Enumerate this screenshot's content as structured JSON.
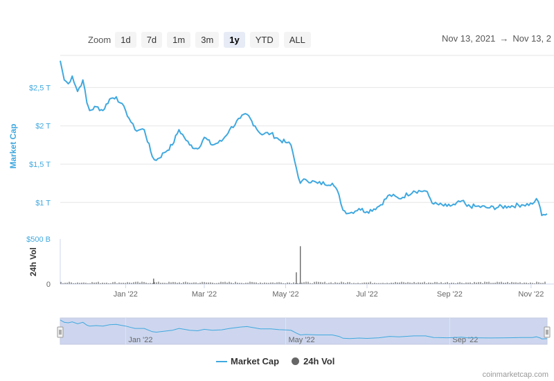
{
  "toolbar": {
    "zoom_label": "Zoom",
    "buttons": [
      "1d",
      "7d",
      "1m",
      "3m",
      "1y",
      "YTD",
      "ALL"
    ],
    "active": "1y",
    "range_from": "Nov 13, 2021",
    "range_arrow": "→",
    "range_to": "Nov 13, 2"
  },
  "legend": {
    "market_cap": "Market Cap",
    "volume": "24h Vol"
  },
  "credit": "coinmarketcap.com",
  "colors": {
    "line": "#3fa8df",
    "volume": "#666666",
    "navigator_fill": "#cdd6ee",
    "grid": "#e6e6e6"
  },
  "chart_data": {
    "type": "line",
    "title": "",
    "ylabel": "Market Cap",
    "ylabel2": "24h Vol",
    "y_ticks": [
      "$1 T",
      "$1,5 T",
      "$2 T",
      "$2,5 T"
    ],
    "y_tick_values": [
      1.0,
      1.5,
      2.0,
      2.5
    ],
    "ylim": [
      0.55,
      2.92
    ],
    "vol_ticks": [
      "0",
      "$500 B"
    ],
    "vol_tick_values": [
      0,
      500
    ],
    "vol_ylim": [
      0,
      500
    ],
    "x_ticks": [
      "Jan '22",
      "Mar '22",
      "May '22",
      "Jul '22",
      "Sep '22",
      "Nov '22"
    ],
    "x_tick_dates": [
      "2022-01-01",
      "2022-03-01",
      "2022-05-01",
      "2022-07-01",
      "2022-09-01",
      "2022-11-01"
    ],
    "x_range": [
      "2021-11-13",
      "2022-11-13"
    ],
    "navigator_ticks": [
      "Jan '22",
      "May '22",
      "Sep '22"
    ],
    "navigator_tick_dates": [
      "2022-01-01",
      "2022-05-01",
      "2022-09-01"
    ],
    "grid": true,
    "series": [
      {
        "name": "Market Cap",
        "x": [
          "2021-11-13",
          "2021-11-16",
          "2021-11-19",
          "2021-11-22",
          "2021-11-26",
          "2021-11-30",
          "2021-12-03",
          "2021-12-05",
          "2021-12-10",
          "2021-12-15",
          "2021-12-20",
          "2021-12-25",
          "2021-12-28",
          "2022-01-01",
          "2022-01-05",
          "2022-01-08",
          "2022-01-15",
          "2022-01-21",
          "2022-01-24",
          "2022-01-30",
          "2022-02-05",
          "2022-02-10",
          "2022-02-14",
          "2022-02-18",
          "2022-02-24",
          "2022-03-01",
          "2022-03-07",
          "2022-03-14",
          "2022-03-20",
          "2022-03-28",
          "2022-04-02",
          "2022-04-08",
          "2022-04-12",
          "2022-04-20",
          "2022-04-26",
          "2022-05-02",
          "2022-05-05",
          "2022-05-09",
          "2022-05-12",
          "2022-05-16",
          "2022-05-25",
          "2022-06-05",
          "2022-06-10",
          "2022-06-13",
          "2022-06-18",
          "2022-06-25",
          "2022-07-01",
          "2022-07-10",
          "2022-07-18",
          "2022-07-25",
          "2022-08-05",
          "2022-08-14",
          "2022-08-20",
          "2022-08-30",
          "2022-09-05",
          "2022-09-10",
          "2022-09-14",
          "2022-09-20",
          "2022-10-01",
          "2022-10-15",
          "2022-10-25",
          "2022-11-02",
          "2022-11-05",
          "2022-11-08",
          "2022-11-09",
          "2022-11-13"
        ],
        "values": [
          2.85,
          2.6,
          2.55,
          2.65,
          2.45,
          2.6,
          2.3,
          2.2,
          2.25,
          2.2,
          2.35,
          2.38,
          2.3,
          2.2,
          2.05,
          1.95,
          1.95,
          1.6,
          1.55,
          1.65,
          1.75,
          1.95,
          1.85,
          1.75,
          1.7,
          1.85,
          1.75,
          1.8,
          1.95,
          2.1,
          2.15,
          2.0,
          1.9,
          1.9,
          1.82,
          1.78,
          1.75,
          1.45,
          1.25,
          1.3,
          1.25,
          1.25,
          1.1,
          0.9,
          0.86,
          0.92,
          0.88,
          0.95,
          1.1,
          1.05,
          1.15,
          1.15,
          0.98,
          0.95,
          0.97,
          1.02,
          0.95,
          0.95,
          0.93,
          0.95,
          0.97,
          0.98,
          1.05,
          0.92,
          0.83,
          0.85
        ]
      },
      {
        "name": "24h Vol",
        "x": [
          "2022-01-22",
          "2022-05-09",
          "2022-05-12"
        ],
        "values": [
          60,
          130,
          420
        ]
      }
    ]
  }
}
